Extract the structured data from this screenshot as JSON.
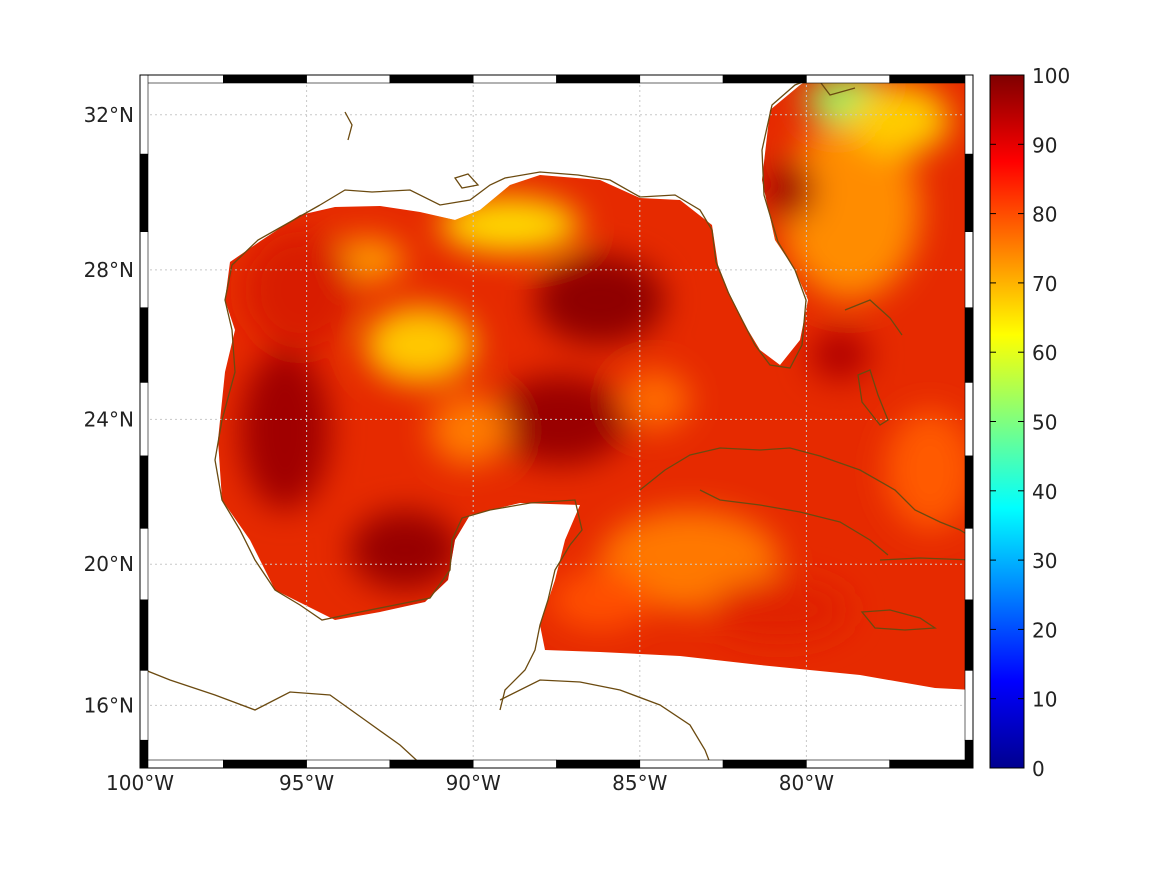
{
  "map": {
    "projection": "mercator",
    "lon_range": [
      -100,
      -75
    ],
    "lat_range": [
      14.2,
      33
    ],
    "lon_ticks": [
      {
        "value": -100,
        "label": "100°W"
      },
      {
        "value": -95,
        "label": "95°W"
      },
      {
        "value": -90,
        "label": "90°W"
      },
      {
        "value": -85,
        "label": "85°W"
      },
      {
        "value": -80,
        "label": "80°W"
      }
    ],
    "lat_ticks": [
      {
        "value": 32,
        "label": "32°N"
      },
      {
        "value": 28,
        "label": "28°N"
      },
      {
        "value": 24,
        "label": "24°N"
      },
      {
        "value": 20,
        "label": "20°N"
      },
      {
        "value": 16,
        "label": "16°N"
      }
    ],
    "grid": true,
    "coastline_color": "#6b4a10",
    "frame_style": "alternating black-white border",
    "field_description": "continuous scalar field over ocean only (Gulf of Mexico, Caribbean, western Atlantic), values mostly 70–95"
  },
  "colorbar": {
    "colormap": "jet",
    "range": [
      0,
      100
    ],
    "ticks": [
      "0",
      "10",
      "20",
      "30",
      "40",
      "50",
      "60",
      "70",
      "80",
      "90",
      "100"
    ]
  }
}
